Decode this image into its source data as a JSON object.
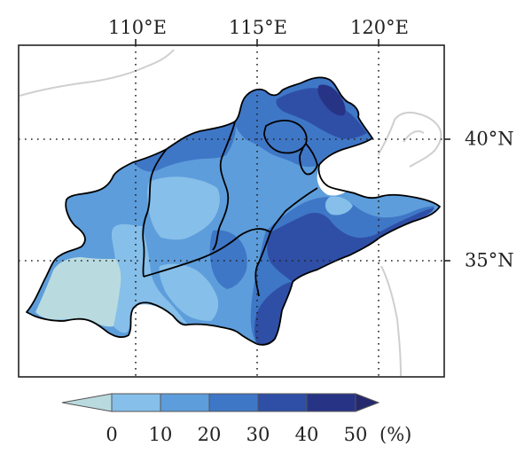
{
  "map": {
    "lon_labels": [
      "110°E",
      "115°E",
      "120°E"
    ],
    "lat_labels": [
      "40°N",
      "35°N"
    ],
    "colors": {
      "background": "#ffffff",
      "grid": "#222222",
      "boundary_gray": "#cfcfcf",
      "province_line": "#000000"
    }
  },
  "colorbar": {
    "tick_labels": [
      "0",
      "10",
      "20",
      "30",
      "40",
      "50"
    ],
    "unit": "(%)",
    "colors": [
      "#b9dbe0",
      "#86bfe9",
      "#5d9ddb",
      "#3f77c7",
      "#2f4fa6",
      "#273486",
      "#24296e"
    ]
  }
}
